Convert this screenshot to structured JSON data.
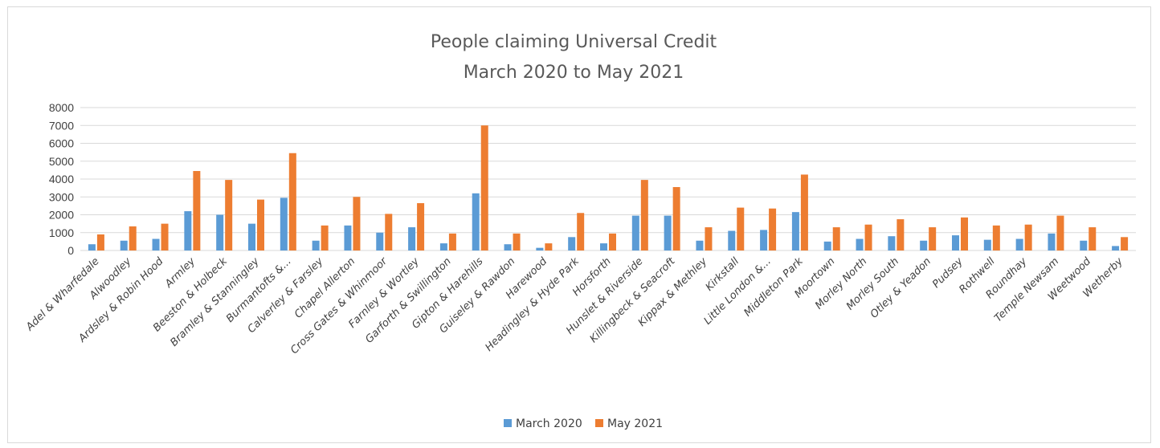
{
  "colors": {
    "march": "#5b9bd5",
    "may": "#ed7d31",
    "grid": "#d9d9d9",
    "text": "#404040",
    "title": "#595959"
  },
  "chart_data": {
    "type": "bar",
    "title": "People claiming Universal Credit",
    "subtitle": "March 2020 to May 2021",
    "xlabel": "",
    "ylabel": "",
    "ylim": [
      0,
      8000
    ],
    "yticks": [
      "0",
      "1000",
      "2000",
      "3000",
      "4000",
      "5000",
      "6000",
      "7000",
      "8000"
    ],
    "grid": true,
    "legend": "bottom",
    "categories": [
      "Adel & Wharfedale",
      "Alwoodley",
      "Ardsley & Robin Hood",
      "Armley",
      "Beeston & Holbeck",
      "Bramley & Stanningley",
      "Burmantofts &...",
      "Calverley & Farsley",
      "Chapel Allerton",
      "Cross Gates & Whinmoor",
      "Farnley & Wortley",
      "Garforth & Swillington",
      "Gipton & Harehills",
      "Guiseley & Rawdon",
      "Harewood",
      "Headingley & Hyde Park",
      "Horsforth",
      "Hunslet & Riverside",
      "Killingbeck & Seacroft",
      "Kippax & Methley",
      "Kirkstall",
      "Little London &...",
      "Middleton Park",
      "Moortown",
      "Morley North",
      "Morley South",
      "Otley & Yeadon",
      "Pudsey",
      "Rothwell",
      "Roundhay",
      "Temple Newsam",
      "Weetwood",
      "Wetherby"
    ],
    "series": [
      {
        "name": "March 2020",
        "values": [
          350,
          550,
          650,
          2200,
          2000,
          1500,
          2950,
          550,
          1400,
          1000,
          1300,
          400,
          3200,
          350,
          150,
          750,
          400,
          1950,
          1950,
          550,
          1100,
          1150,
          2150,
          500,
          650,
          800,
          550,
          850,
          600,
          650,
          950,
          550,
          250
        ]
      },
      {
        "name": "May 2021",
        "values": [
          900,
          1350,
          1500,
          4450,
          3950,
          2850,
          5450,
          1400,
          3000,
          2050,
          2650,
          950,
          7000,
          950,
          400,
          2100,
          950,
          3950,
          3550,
          1300,
          2400,
          2350,
          4250,
          1300,
          1450,
          1750,
          1300,
          1850,
          1400,
          1450,
          1950,
          1300,
          750
        ]
      }
    ]
  }
}
